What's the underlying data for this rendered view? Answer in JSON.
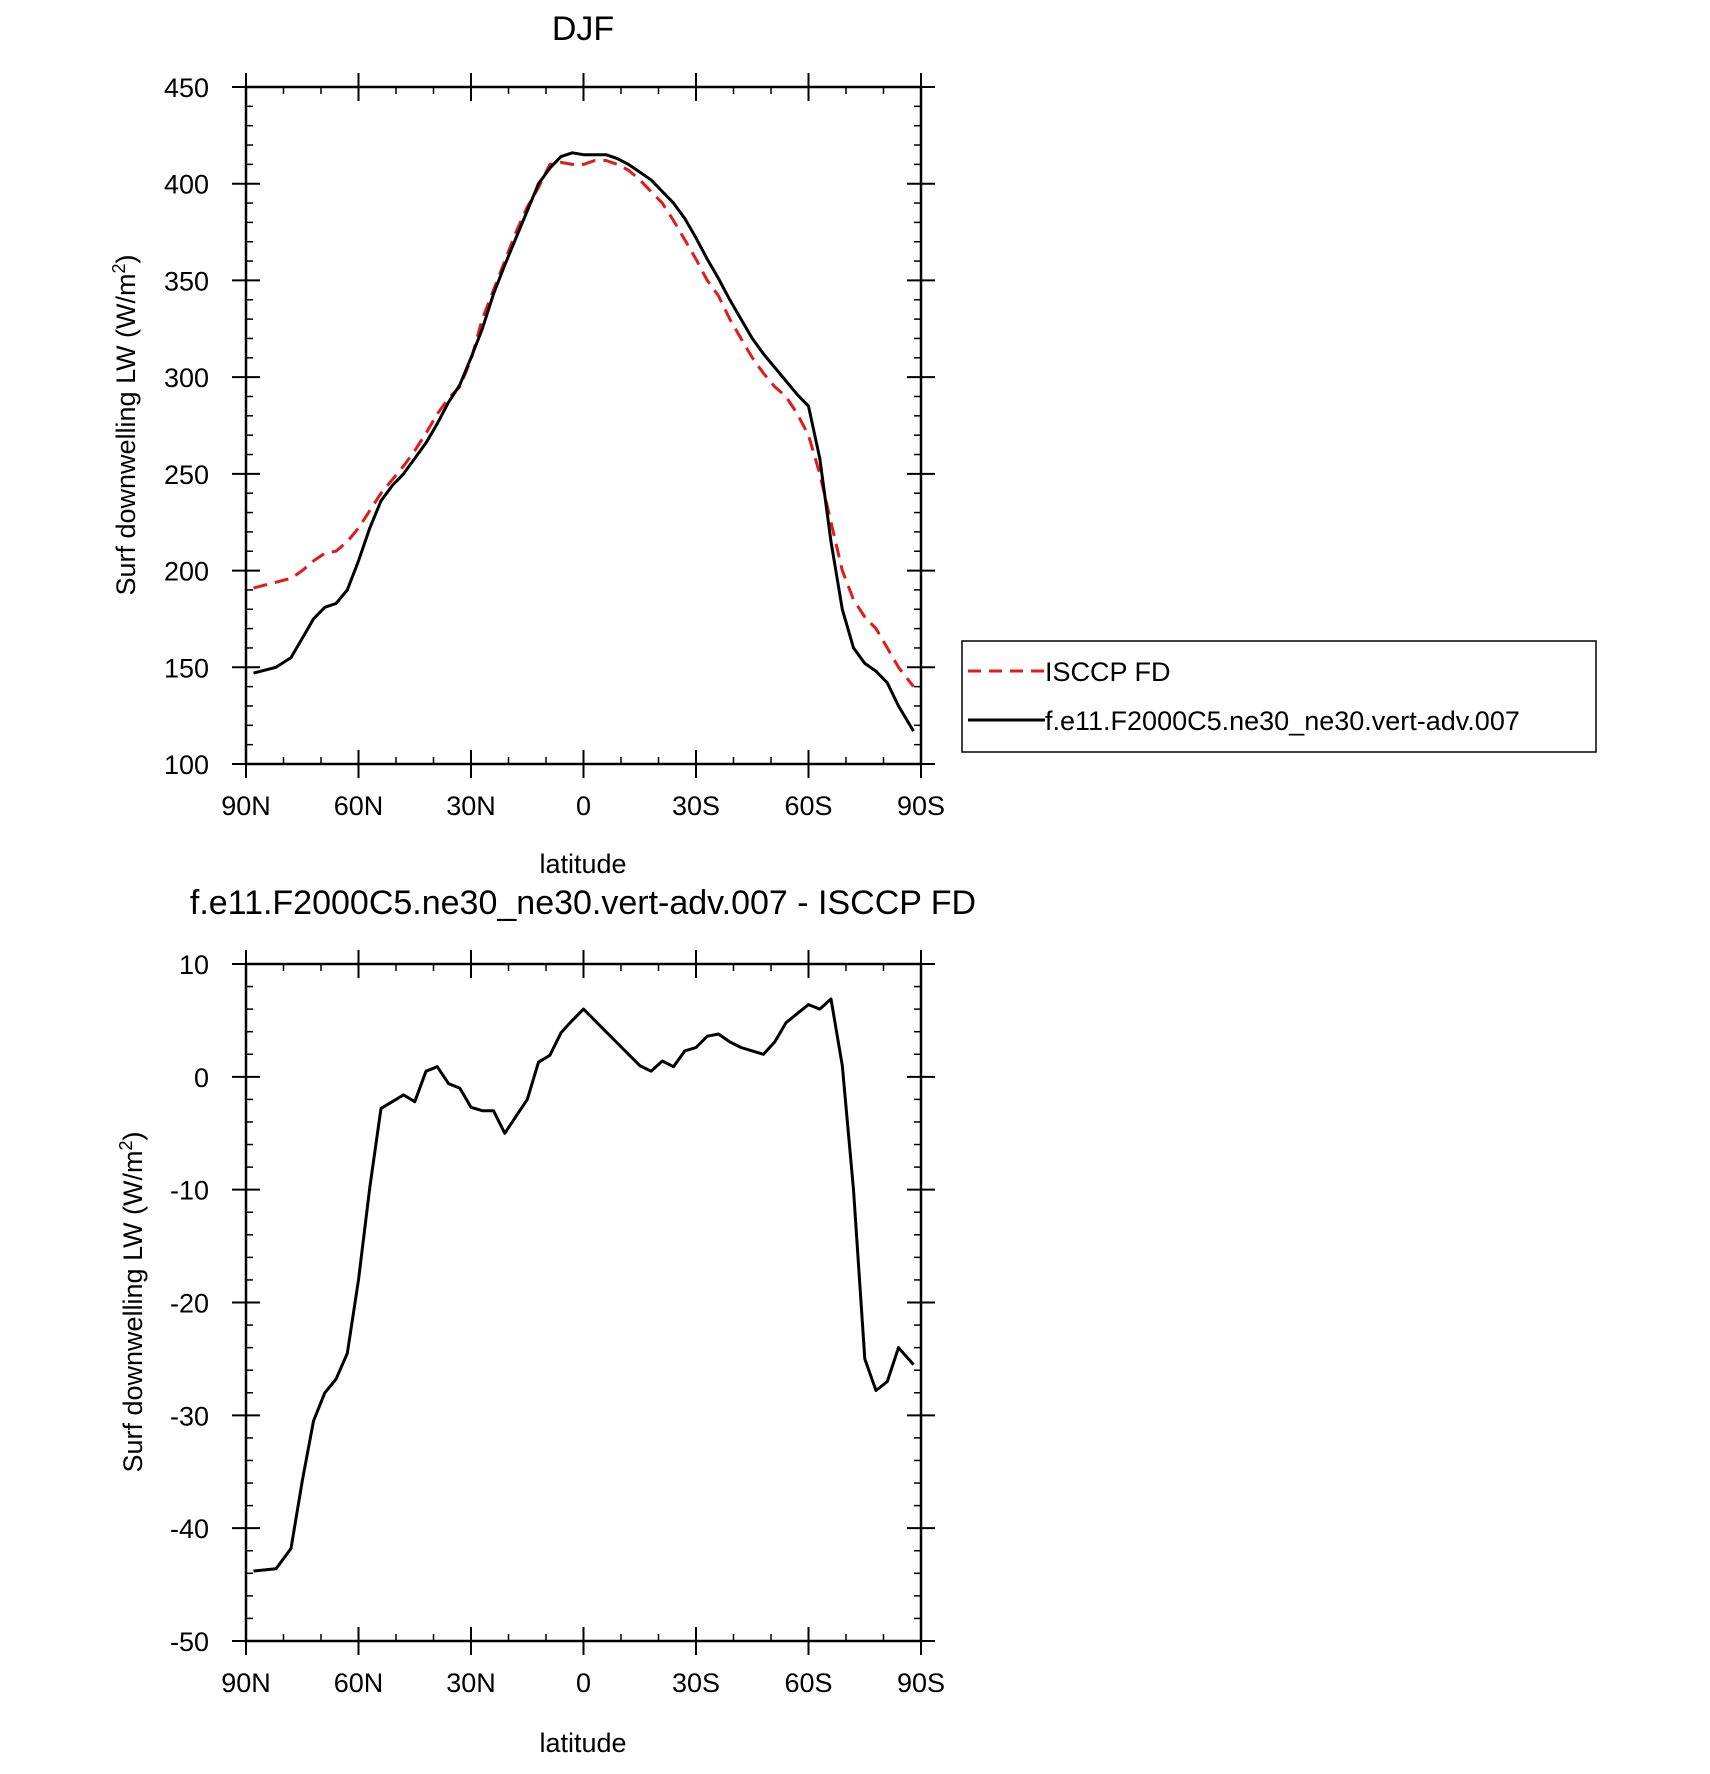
{
  "chart_data": [
    {
      "type": "line",
      "title": "DJF",
      "xlabel": "latitude",
      "ylabel": "Surf downwelling LW (W/m²)",
      "ylabel_parts": {
        "main": "Surf downwelling LW (W/m",
        "sup": "2",
        "tail": ")"
      },
      "xlim": [
        90,
        -90
      ],
      "ylim": [
        100,
        450
      ],
      "x_ticks": [
        {
          "value": 90,
          "label": "90N"
        },
        {
          "value": 60,
          "label": "60N"
        },
        {
          "value": 30,
          "label": "30N"
        },
        {
          "value": 0,
          "label": "0"
        },
        {
          "value": -30,
          "label": "30S"
        },
        {
          "value": -60,
          "label": "60S"
        },
        {
          "value": -90,
          "label": "90S"
        }
      ],
      "y_ticks": [
        {
          "value": 100,
          "label": "100"
        },
        {
          "value": 150,
          "label": "150"
        },
        {
          "value": 200,
          "label": "200"
        },
        {
          "value": 250,
          "label": "250"
        },
        {
          "value": 300,
          "label": "300"
        },
        {
          "value": 350,
          "label": "350"
        },
        {
          "value": 400,
          "label": "400"
        },
        {
          "value": 450,
          "label": "450"
        }
      ],
      "grid": false,
      "legend_position": "right",
      "series": [
        {
          "name": "ISCCP FD",
          "color": "#e31a1c",
          "dash": "dashed",
          "x": [
            88,
            82,
            78,
            75,
            72,
            69,
            66,
            63,
            60,
            57,
            54,
            51,
            48,
            45,
            42,
            39,
            36,
            33,
            30,
            27,
            24,
            21,
            18,
            15,
            12,
            9,
            6,
            3,
            0,
            -3,
            -6,
            -9,
            -12,
            -15,
            -18,
            -21,
            -24,
            -27,
            -30,
            -33,
            -36,
            -39,
            -42,
            -45,
            -48,
            -51,
            -54,
            -57,
            -60,
            -63,
            -66,
            -69,
            -72,
            -75,
            -78,
            -81,
            -84,
            -88
          ],
          "values": [
            191,
            194,
            196,
            200,
            205,
            209,
            210,
            215,
            222,
            231,
            240,
            247,
            254,
            262,
            271,
            281,
            289,
            295,
            309,
            330,
            345,
            360,
            375,
            388,
            398,
            410,
            411,
            410,
            410,
            412,
            412,
            410,
            407,
            402,
            396,
            390,
            381,
            371,
            361,
            350,
            342,
            330,
            320,
            310,
            302,
            295,
            290,
            281,
            270,
            250,
            225,
            200,
            185,
            176,
            170,
            160,
            150,
            140
          ]
        },
        {
          "name": "f.e11.F2000C5.ne30_ne30.vert-adv.007",
          "color": "#000000",
          "dash": "solid",
          "x": [
            88,
            82,
            78,
            75,
            72,
            69,
            66,
            63,
            60,
            57,
            54,
            51,
            48,
            45,
            42,
            39,
            36,
            33,
            30,
            27,
            24,
            21,
            18,
            15,
            12,
            9,
            6,
            3,
            0,
            -3,
            -6,
            -9,
            -12,
            -15,
            -18,
            -21,
            -24,
            -27,
            -30,
            -33,
            -36,
            -39,
            -42,
            -45,
            -48,
            -51,
            -54,
            -57,
            -60,
            -63,
            -66,
            -69,
            -72,
            -75,
            -78,
            -81,
            -84,
            -88
          ],
          "values": [
            147,
            150,
            155,
            165,
            175,
            181,
            183,
            190,
            205,
            222,
            236,
            244,
            250,
            258,
            266,
            276,
            287,
            296,
            310,
            325,
            343,
            358,
            372,
            386,
            400,
            408,
            414,
            416,
            415,
            415,
            415,
            413,
            410,
            406,
            402,
            396,
            390,
            382,
            372,
            361,
            351,
            340,
            330,
            320,
            312,
            305,
            298,
            291,
            285,
            258,
            215,
            180,
            160,
            152,
            148,
            142,
            130,
            117
          ]
        }
      ]
    },
    {
      "type": "line",
      "title": "f.e11.F2000C5.ne30_ne30.vert-adv.007 - ISCCP FD",
      "xlabel": "latitude",
      "ylabel": "Surf downwelling LW (W/m²)",
      "ylabel_parts": {
        "main": "Surf downwelling LW (W/m",
        "sup": "2",
        "tail": ")"
      },
      "xlim": [
        90,
        -90
      ],
      "ylim": [
        -50,
        10
      ],
      "x_ticks": [
        {
          "value": 90,
          "label": "90N"
        },
        {
          "value": 60,
          "label": "60N"
        },
        {
          "value": 30,
          "label": "30N"
        },
        {
          "value": 0,
          "label": "0"
        },
        {
          "value": -30,
          "label": "30S"
        },
        {
          "value": -60,
          "label": "60S"
        },
        {
          "value": -90,
          "label": "90S"
        }
      ],
      "y_ticks": [
        {
          "value": -50,
          "label": "-50"
        },
        {
          "value": -40,
          "label": "-40"
        },
        {
          "value": -30,
          "label": "-30"
        },
        {
          "value": -20,
          "label": "-20"
        },
        {
          "value": -10,
          "label": "-10"
        },
        {
          "value": 0,
          "label": "0"
        },
        {
          "value": 10,
          "label": "10"
        }
      ],
      "grid": false,
      "series": [
        {
          "name": "",
          "color": "#000000",
          "dash": "solid",
          "x": [
            88,
            82,
            78,
            75,
            72,
            69,
            66,
            63,
            60,
            57,
            54,
            51,
            48,
            45,
            42,
            39,
            36,
            33,
            30,
            27,
            24,
            21,
            18,
            15,
            12,
            9,
            6,
            3,
            0,
            -3,
            -6,
            -9,
            -12,
            -15,
            -18,
            -21,
            -24,
            -27,
            -30,
            -33,
            -36,
            -39,
            -42,
            -45,
            -48,
            -51,
            -54,
            -57,
            -60,
            -63,
            -66,
            -69,
            -72,
            -75,
            -78,
            -81,
            -84,
            -88
          ],
          "values": [
            -43.8,
            -43.6,
            -41.8,
            -35.8,
            -30.5,
            -28.0,
            -26.8,
            -24.5,
            -18.0,
            -9.8,
            -2.8,
            -2.2,
            -1.6,
            -2.2,
            0.5,
            0.9,
            -0.6,
            -1.0,
            -2.7,
            -3.0,
            -3.0,
            -5.0,
            -3.5,
            -2.0,
            1.3,
            1.9,
            3.9,
            5.0,
            6.0,
            5.0,
            4.0,
            3.0,
            2.0,
            1.0,
            0.5,
            1.4,
            0.9,
            2.3,
            2.6,
            3.6,
            3.8,
            3.1,
            2.6,
            2.3,
            2.0,
            3.1,
            4.8,
            5.6,
            6.4,
            6.0,
            6.9,
            1.0,
            -10.0,
            -25.0,
            -27.8,
            -27.0,
            -24.0,
            -25.5
          ]
        }
      ]
    }
  ]
}
